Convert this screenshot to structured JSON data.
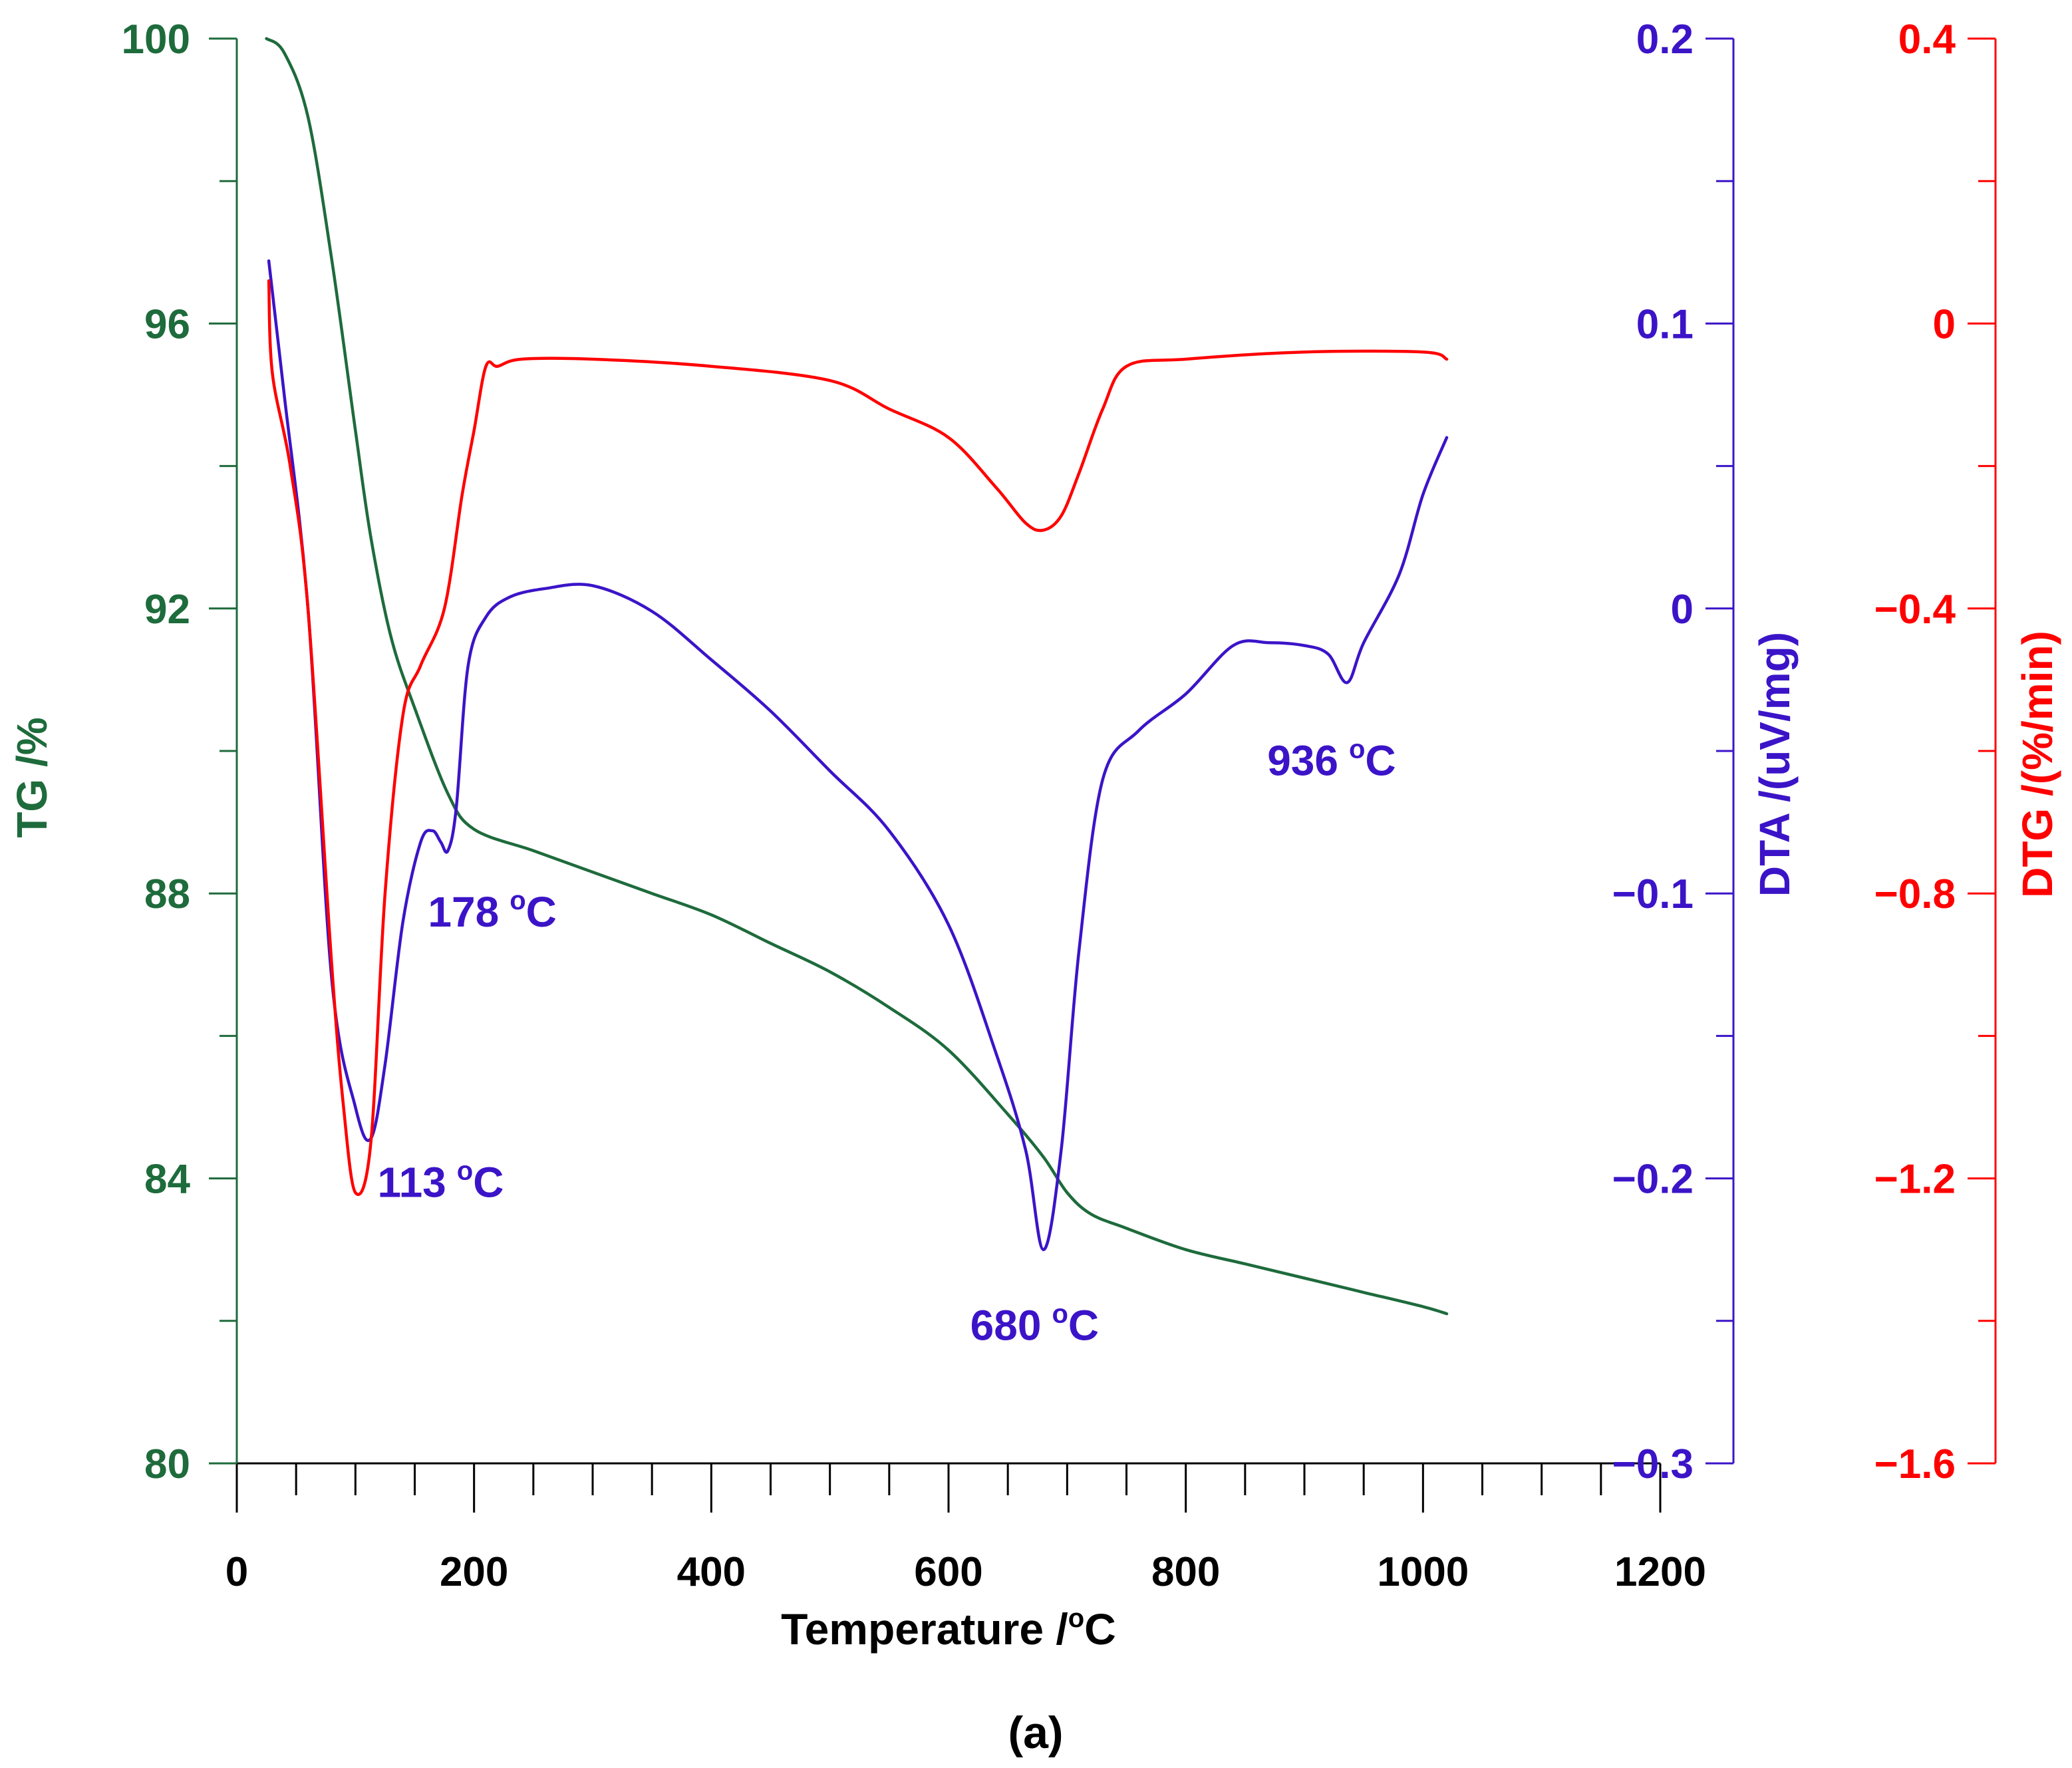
{
  "chart_data": {
    "type": "line",
    "caption": "(a)",
    "colors": {
      "tg": "#1e6b3c",
      "dta": "#3b14c8",
      "dtg": "#ff0000",
      "axis_x": "#000000"
    },
    "x_axis": {
      "label": "Temperature /",
      "label_sup": "o",
      "label_unit": "C",
      "range": [
        0,
        1200
      ],
      "ticks": [
        0,
        200,
        400,
        600,
        800,
        1000,
        1200
      ],
      "tick_labels": [
        "0",
        "200",
        "400",
        "600",
        "800",
        "1000",
        "1200"
      ],
      "minor_step": 50
    },
    "tg_axis": {
      "label": "TG /%",
      "range": [
        80,
        100
      ],
      "ticks": [
        80,
        84,
        88,
        92,
        96,
        100
      ],
      "tick_labels": [
        "80",
        "84",
        "88",
        "92",
        "96",
        "100"
      ],
      "minor_step": 2
    },
    "dta_axis": {
      "label": "DTA /(uV/mg)",
      "range": [
        -0.3,
        0.2
      ],
      "ticks": [
        -0.3,
        -0.2,
        -0.1,
        0,
        0.1,
        0.2
      ],
      "tick_labels": [
        "−0.3",
        "−0.2",
        "−0.1",
        "0",
        "0.1",
        "0.2"
      ],
      "minor_step": 0.05
    },
    "dtg_axis": {
      "label": "DTG /(%/min)",
      "range": [
        -1.6,
        0.4
      ],
      "ticks": [
        -1.6,
        -1.2,
        -0.8,
        -0.4,
        0,
        0.4
      ],
      "tick_labels": [
        "−1.6",
        "−1.2",
        "−0.8",
        "−0.4",
        "0",
        "0.4"
      ],
      "minor_step": 0.2
    },
    "series": [
      {
        "name": "TG",
        "axis": "tg",
        "x": [
          25,
          40,
          60,
          80,
          100,
          113,
          130,
          150,
          178,
          200,
          250,
          300,
          350,
          400,
          450,
          500,
          550,
          600,
          650,
          680,
          700,
          720,
          750,
          800,
          850,
          900,
          950,
          1000,
          1020
        ],
        "y": [
          100,
          99.8,
          98.9,
          96.9,
          94.5,
          93.0,
          91.6,
          90.6,
          89.4,
          88.9,
          88.6,
          88.3,
          88.0,
          87.7,
          87.3,
          86.9,
          86.4,
          85.8,
          84.9,
          84.3,
          83.8,
          83.5,
          83.3,
          83.0,
          82.8,
          82.6,
          82.4,
          82.2,
          82.1
        ]
      },
      {
        "name": "DTA",
        "axis": "dta",
        "x": [
          27,
          40,
          60,
          80,
          100,
          113,
          125,
          140,
          155,
          165,
          172,
          178,
          185,
          195,
          210,
          230,
          260,
          300,
          350,
          400,
          450,
          500,
          550,
          600,
          640,
          665,
          680,
          695,
          710,
          730,
          760,
          800,
          840,
          870,
          900,
          920,
          936,
          950,
          980,
          1000,
          1020
        ],
        "y": [
          0.122,
          0.075,
          0.0,
          -0.13,
          -0.175,
          -0.186,
          -0.16,
          -0.11,
          -0.082,
          -0.078,
          -0.082,
          -0.085,
          -0.07,
          -0.02,
          -0.003,
          0.004,
          0.007,
          0.008,
          -0.001,
          -0.018,
          -0.036,
          -0.057,
          -0.078,
          -0.111,
          -0.156,
          -0.19,
          -0.225,
          -0.19,
          -0.12,
          -0.06,
          -0.043,
          -0.03,
          -0.013,
          -0.012,
          -0.013,
          -0.016,
          -0.026,
          -0.012,
          0.012,
          0.04,
          0.06
        ]
      },
      {
        "name": "DTG",
        "axis": "dtg",
        "x": [
          27,
          30,
          45,
          60,
          80,
          90,
          100,
          113,
          125,
          140,
          155,
          175,
          190,
          200,
          210,
          220,
          240,
          300,
          400,
          500,
          550,
          600,
          640,
          665,
          680,
          695,
          710,
          730,
          750,
          800,
          900,
          1000,
          1020
        ],
        "y": [
          0.06,
          -0.07,
          -0.2,
          -0.4,
          -0.9,
          -1.1,
          -1.22,
          -1.15,
          -0.8,
          -0.55,
          -0.48,
          -0.4,
          -0.24,
          -0.15,
          -0.06,
          -0.06,
          -0.05,
          -0.05,
          -0.06,
          -0.08,
          -0.12,
          -0.16,
          -0.23,
          -0.28,
          -0.29,
          -0.27,
          -0.21,
          -0.12,
          -0.06,
          -0.05,
          -0.04,
          -0.04,
          -0.05
        ]
      }
    ],
    "annotations": [
      {
        "text": "113 °C",
        "value": "113",
        "sup": "o",
        "unit": "C",
        "x": 113,
        "y": -0.2,
        "axis": "dta"
      },
      {
        "text": "178 °C",
        "value": "178",
        "sup": "o",
        "unit": "C",
        "x": 178,
        "y": -0.1,
        "axis": "dta"
      },
      {
        "text": "680 °C",
        "value": "680",
        "sup": "o",
        "unit": "C",
        "x": 680,
        "y": -0.245,
        "axis": "dta"
      },
      {
        "text": "936 °C",
        "value": "936",
        "sup": "o",
        "unit": "C",
        "x": 936,
        "y": -0.045,
        "axis": "dta"
      }
    ]
  }
}
